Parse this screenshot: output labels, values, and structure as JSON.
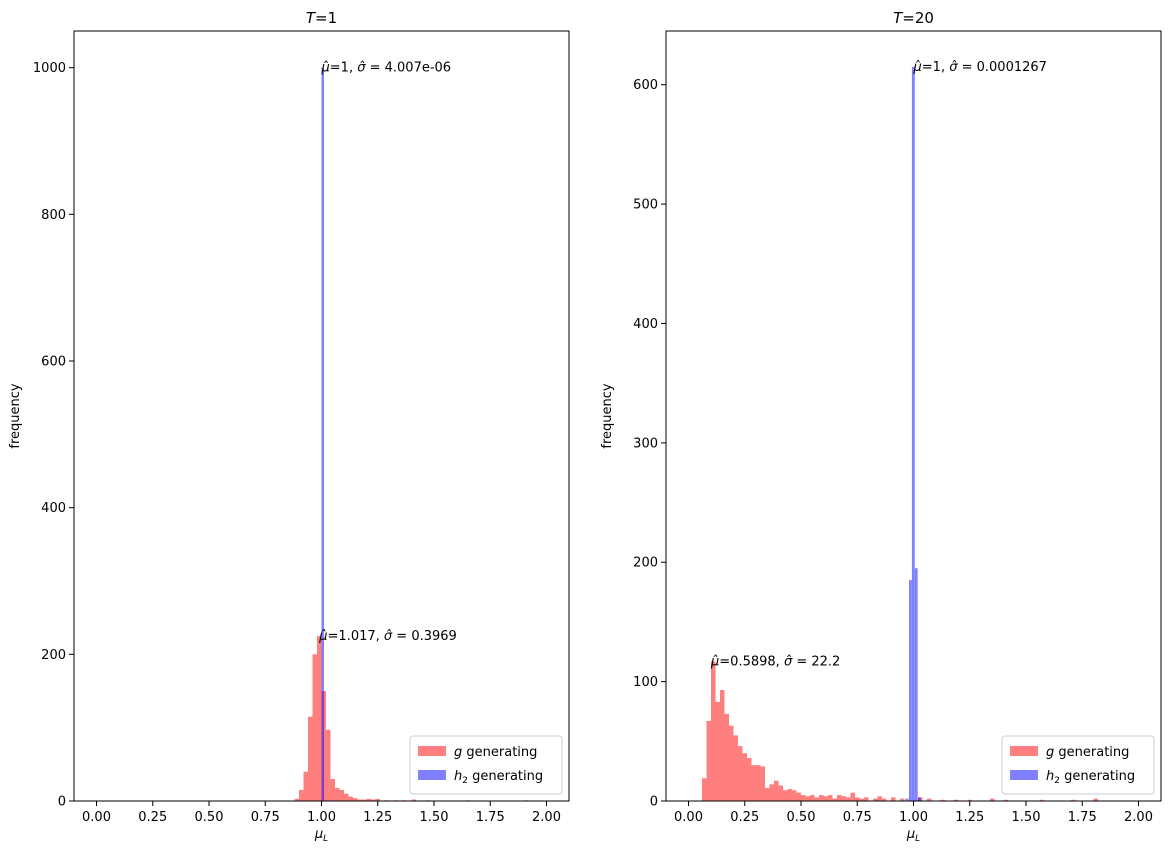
{
  "chart_data": [
    {
      "type": "bar",
      "title": "T=1",
      "xlabel": "μL",
      "ylabel": "frequency",
      "xlim": [
        -0.1,
        2.1
      ],
      "ylim": [
        0,
        1050
      ],
      "xticks": [
        "0.00",
        "0.25",
        "0.50",
        "0.75",
        "1.00",
        "1.25",
        "1.50",
        "1.75",
        "2.00"
      ],
      "yticks": [
        "0",
        "200",
        "400",
        "600",
        "800",
        "1000"
      ],
      "legend_position": "lower right",
      "series": [
        {
          "name": "g generating",
          "color": "#ff0000",
          "alpha": 0.5,
          "bin_width": 0.02,
          "bins": [
            {
              "x": 0.88,
              "y": 3
            },
            {
              "x": 0.9,
              "y": 15
            },
            {
              "x": 0.92,
              "y": 40
            },
            {
              "x": 0.94,
              "y": 115
            },
            {
              "x": 0.96,
              "y": 200
            },
            {
              "x": 0.98,
              "y": 225
            },
            {
              "x": 1.0,
              "y": 150
            },
            {
              "x": 1.02,
              "y": 97
            },
            {
              "x": 1.04,
              "y": 30
            },
            {
              "x": 1.06,
              "y": 18
            },
            {
              "x": 1.08,
              "y": 15
            },
            {
              "x": 1.1,
              "y": 10
            },
            {
              "x": 1.12,
              "y": 6
            },
            {
              "x": 1.14,
              "y": 4
            },
            {
              "x": 1.16,
              "y": 2
            },
            {
              "x": 1.18,
              "y": 2
            },
            {
              "x": 1.2,
              "y": 3
            },
            {
              "x": 1.22,
              "y": 2
            },
            {
              "x": 1.24,
              "y": 3
            },
            {
              "x": 1.28,
              "y": 1
            },
            {
              "x": 1.32,
              "y": 1
            },
            {
              "x": 1.36,
              "y": 1
            },
            {
              "x": 1.4,
              "y": 2
            },
            {
              "x": 1.46,
              "y": 1
            },
            {
              "x": 1.64,
              "y": 1
            },
            {
              "x": 1.9,
              "y": 1
            }
          ]
        },
        {
          "name": "h2 generating",
          "color": "#0000ff",
          "alpha": 0.5,
          "bin_width": 0.011,
          "bins": [
            {
              "x": 1.0,
              "y": 1000
            }
          ]
        }
      ],
      "annotations": [
        {
          "x": 1.0,
          "y": 1000,
          "mu": "1",
          "sigma": "4.007e-06"
        },
        {
          "x": 0.99,
          "y": 225,
          "mu": "1.017",
          "sigma": "0.3969"
        }
      ]
    },
    {
      "type": "bar",
      "title": "T=20",
      "xlabel": "μL",
      "ylabel": "frequency",
      "xlim": [
        -0.1,
        2.1
      ],
      "ylim": [
        0,
        645
      ],
      "xticks": [
        "0.00",
        "0.25",
        "0.50",
        "0.75",
        "1.00",
        "1.25",
        "1.50",
        "1.75",
        "2.00"
      ],
      "yticks": [
        "0",
        "100",
        "200",
        "300",
        "400",
        "500",
        "600"
      ],
      "legend_position": "lower right",
      "series": [
        {
          "name": "g generating",
          "color": "#ff0000",
          "alpha": 0.5,
          "bin_width": 0.02,
          "bins": [
            {
              "x": 0.06,
              "y": 19
            },
            {
              "x": 0.08,
              "y": 67
            },
            {
              "x": 0.1,
              "y": 117
            },
            {
              "x": 0.12,
              "y": 83
            },
            {
              "x": 0.14,
              "y": 93
            },
            {
              "x": 0.16,
              "y": 73
            },
            {
              "x": 0.18,
              "y": 63
            },
            {
              "x": 0.2,
              "y": 55
            },
            {
              "x": 0.22,
              "y": 46
            },
            {
              "x": 0.24,
              "y": 40
            },
            {
              "x": 0.26,
              "y": 36
            },
            {
              "x": 0.28,
              "y": 30
            },
            {
              "x": 0.3,
              "y": 30
            },
            {
              "x": 0.32,
              "y": 29
            },
            {
              "x": 0.34,
              "y": 11
            },
            {
              "x": 0.36,
              "y": 14
            },
            {
              "x": 0.38,
              "y": 17
            },
            {
              "x": 0.4,
              "y": 13
            },
            {
              "x": 0.42,
              "y": 9
            },
            {
              "x": 0.44,
              "y": 10
            },
            {
              "x": 0.46,
              "y": 9
            },
            {
              "x": 0.48,
              "y": 7
            },
            {
              "x": 0.5,
              "y": 5
            },
            {
              "x": 0.52,
              "y": 4
            },
            {
              "x": 0.54,
              "y": 5
            },
            {
              "x": 0.56,
              "y": 3
            },
            {
              "x": 0.58,
              "y": 5
            },
            {
              "x": 0.6,
              "y": 4
            },
            {
              "x": 0.62,
              "y": 5
            },
            {
              "x": 0.64,
              "y": 2
            },
            {
              "x": 0.66,
              "y": 5
            },
            {
              "x": 0.68,
              "y": 4
            },
            {
              "x": 0.7,
              "y": 3
            },
            {
              "x": 0.72,
              "y": 7
            },
            {
              "x": 0.74,
              "y": 3
            },
            {
              "x": 0.76,
              "y": 2
            },
            {
              "x": 0.78,
              "y": 3
            },
            {
              "x": 0.82,
              "y": 2
            },
            {
              "x": 0.84,
              "y": 4
            },
            {
              "x": 0.86,
              "y": 2
            },
            {
              "x": 0.9,
              "y": 3
            },
            {
              "x": 0.94,
              "y": 2
            },
            {
              "x": 1.02,
              "y": 3
            },
            {
              "x": 1.06,
              "y": 2
            },
            {
              "x": 1.12,
              "y": 1
            },
            {
              "x": 1.18,
              "y": 1
            },
            {
              "x": 1.24,
              "y": 1
            },
            {
              "x": 1.34,
              "y": 2
            },
            {
              "x": 1.4,
              "y": 1
            },
            {
              "x": 1.56,
              "y": 1
            },
            {
              "x": 1.7,
              "y": 1
            },
            {
              "x": 1.8,
              "y": 2
            }
          ]
        },
        {
          "name": "h2 generating",
          "color": "#0000ff",
          "alpha": 0.5,
          "bin_width": 0.0125,
          "bins": [
            {
              "x": 0.965,
              "y": 2
            },
            {
              "x": 0.98,
              "y": 185
            },
            {
              "x": 0.993,
              "y": 615
            },
            {
              "x": 1.006,
              "y": 195
            },
            {
              "x": 1.02,
              "y": 3
            }
          ]
        }
      ],
      "annotations": [
        {
          "x": 1.0,
          "y": 615,
          "mu": "1",
          "sigma": "0.0001267"
        },
        {
          "x": 0.1,
          "y": 117,
          "mu": "0.5898",
          "sigma": "22.2"
        }
      ]
    }
  ]
}
